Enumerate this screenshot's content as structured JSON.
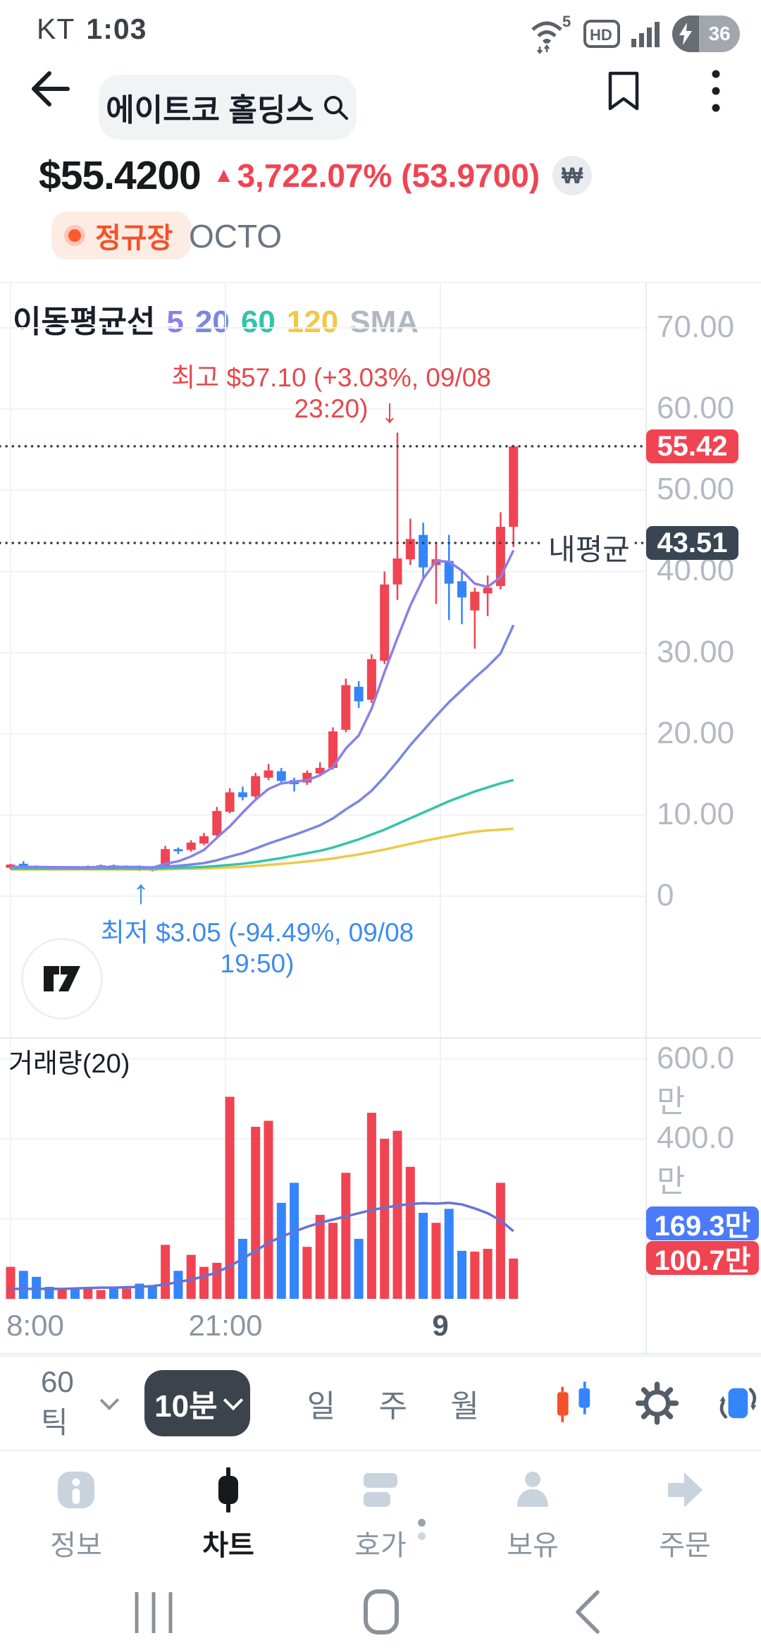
{
  "status_bar": {
    "carrier": "KT",
    "time": "1:03",
    "battery_pct": "36",
    "hd_label": "HD",
    "wifi_gen": "5"
  },
  "header": {
    "stock_name": "에이트코 홀딩스"
  },
  "price_row": {
    "price": "$55.4200",
    "arrow": "▲",
    "change": "3,722.07% (53.9700)",
    "currency_toggle": "₩"
  },
  "market_row": {
    "session": "정규장",
    "venue": "OCTO"
  },
  "toolbar": {
    "tick_label": "60틱",
    "interval_label": "10분",
    "day": "일",
    "week": "주",
    "month": "월"
  },
  "bottom_nav": {
    "items": [
      {
        "label": "정보",
        "icon": "info"
      },
      {
        "label": "차트",
        "icon": "candle",
        "active": true
      },
      {
        "label": "호가",
        "icon": "orderbook"
      },
      {
        "label": "보유",
        "icon": "person"
      },
      {
        "label": "주문",
        "icon": "arrow-right"
      }
    ]
  },
  "colors": {
    "up": "#f04452",
    "down": "#3485fa",
    "avg_badge_bg": "#3a4553",
    "volma_badge_bg": "#4b7bf8",
    "ma5": "#8b80e9",
    "ma20": "#7a86e0",
    "ma60": "#35c3ab",
    "ma120": "#eec94a",
    "vol_ma": "#6673d6",
    "grid": "#f0f2f4",
    "border": "#e7eaed",
    "annotation_high": "#e5484d",
    "annotation_low": "#3d8bf0",
    "session": "#f45128",
    "dotted": "#333d4b",
    "inactive_icon": "#c9d3dd",
    "active_icon": "#17191c"
  },
  "chart_data": {
    "type": "candlestick",
    "legend": {
      "title": "이동평균선",
      "p5": "5",
      "p20": "20",
      "p60": "60",
      "p120": "120",
      "suffix": "SMA"
    },
    "title": "",
    "price_axis": {
      "ticks": [
        {
          "v": 70,
          "label": "70.00"
        },
        {
          "v": 60,
          "label": "60.00"
        },
        {
          "v": 50,
          "label": "50.00"
        },
        {
          "v": 40,
          "label": "40.00"
        },
        {
          "v": 30,
          "label": "30.00"
        },
        {
          "v": 20,
          "label": "20.00"
        },
        {
          "v": 10,
          "label": "10.00"
        },
        {
          "v": 0,
          "label": "0"
        }
      ]
    },
    "x_ticks": [
      {
        "x": 50,
        "label": "8:00",
        "bold": false
      },
      {
        "x": 320,
        "label": "21:00",
        "bold": false
      },
      {
        "x": 625,
        "label": "9",
        "bold": true
      }
    ],
    "current_price": {
      "value": 55.42,
      "label": "55.42"
    },
    "avg_price": {
      "value": 43.51,
      "label": "43.51",
      "name": "내평균"
    },
    "high_annotation": {
      "text": "최고 $57.10 (+3.03%, 09/08 23:20)",
      "arrow": "↓"
    },
    "low_annotation": {
      "text": "최저 $3.05 (-94.49%, 09/08 19:50)",
      "arrow": "↑"
    },
    "volume": {
      "title": "거래량(20)",
      "axis": [
        {
          "v": 600,
          "label": "600.0만"
        },
        {
          "v": 400,
          "label": "400.0만"
        }
      ],
      "grid": [
        600,
        400,
        200
      ],
      "ma_badge": "169.3만",
      "last_badge": "100.7만"
    },
    "candles": [
      [
        3.5,
        4.0,
        3.3,
        3.9
      ],
      [
        4.0,
        4.3,
        3.4,
        3.5
      ],
      [
        3.6,
        3.8,
        3.3,
        3.5
      ],
      [
        3.5,
        3.7,
        3.3,
        3.4
      ],
      [
        3.4,
        3.7,
        3.3,
        3.6
      ],
      [
        3.6,
        3.7,
        3.3,
        3.4
      ],
      [
        3.4,
        3.8,
        3.3,
        3.7
      ],
      [
        3.6,
        3.9,
        3.5,
        3.8
      ],
      [
        3.8,
        3.9,
        3.4,
        3.5
      ],
      [
        3.5,
        3.8,
        3.4,
        3.7
      ],
      [
        3.7,
        3.8,
        3.1,
        3.3
      ],
      [
        3.4,
        3.5,
        3.05,
        3.2
      ],
      [
        3.3,
        6.2,
        3.2,
        5.8
      ],
      [
        5.8,
        6.0,
        5.2,
        5.6
      ],
      [
        5.7,
        6.9,
        5.5,
        6.6
      ],
      [
        6.5,
        7.8,
        6.3,
        7.4
      ],
      [
        7.5,
        11.0,
        7.4,
        10.5
      ],
      [
        10.4,
        13.3,
        10.2,
        12.8
      ],
      [
        12.8,
        13.5,
        11.8,
        12.2
      ],
      [
        12.3,
        15.2,
        12.1,
        14.8
      ],
      [
        14.6,
        16.3,
        14.3,
        15.5
      ],
      [
        15.4,
        15.8,
        13.8,
        14.2
      ],
      [
        14.3,
        14.6,
        12.9,
        13.8
      ],
      [
        14.0,
        15.5,
        13.7,
        15.2
      ],
      [
        15.1,
        16.5,
        14.9,
        15.8
      ],
      [
        15.8,
        20.8,
        15.6,
        20.3
      ],
      [
        20.5,
        26.8,
        20.2,
        26.0
      ],
      [
        25.8,
        26.5,
        23.2,
        24.0
      ],
      [
        24.2,
        29.8,
        23.8,
        29.2
      ],
      [
        29.0,
        40.0,
        28.6,
        38.4
      ],
      [
        38.4,
        57.1,
        36.5,
        41.6
      ],
      [
        41.5,
        46.5,
        40.8,
        44.0
      ],
      [
        44.5,
        46.0,
        39.0,
        40.5
      ],
      [
        40.8,
        43.5,
        36.0,
        41.5
      ],
      [
        41.3,
        44.5,
        34.0,
        38.5
      ],
      [
        38.8,
        40.0,
        33.5,
        36.8
      ],
      [
        35.2,
        38.0,
        30.5,
        37.5
      ],
      [
        37.3,
        39.5,
        34.5,
        38.0
      ],
      [
        38.2,
        47.3,
        37.8,
        45.5
      ],
      [
        45.5,
        55.6,
        43.0,
        55.4
      ]
    ],
    "ma5": [
      3.6,
      3.6,
      3.6,
      3.55,
      3.56,
      3.5,
      3.54,
      3.58,
      3.6,
      3.62,
      3.6,
      3.5,
      4.0,
      4.3,
      4.9,
      5.7,
      7.2,
      8.6,
      10.3,
      11.9,
      13.2,
      13.9,
      14.1,
      14.3,
      14.9,
      15.9,
      18.2,
      19.8,
      23.1,
      27.6,
      31.8,
      35.8,
      39.1,
      41.3,
      41.2,
      40.1,
      38.5,
      38.1,
      39.3,
      42.6
    ],
    "ma20": [
      3.6,
      3.6,
      3.6,
      3.58,
      3.57,
      3.56,
      3.56,
      3.57,
      3.57,
      3.58,
      3.57,
      3.55,
      3.66,
      3.76,
      3.9,
      4.08,
      4.42,
      4.88,
      5.3,
      5.88,
      6.48,
      7.02,
      7.55,
      8.13,
      8.74,
      9.58,
      10.7,
      11.7,
      13.0,
      14.7,
      16.6,
      18.6,
      20.4,
      22.2,
      23.9,
      25.4,
      26.9,
      28.3,
      29.9,
      33.4
    ],
    "ma60": [
      3.4,
      3.4,
      3.4,
      3.4,
      3.4,
      3.4,
      3.4,
      3.4,
      3.4,
      3.4,
      3.4,
      3.4,
      3.45,
      3.5,
      3.55,
      3.62,
      3.72,
      3.86,
      4.0,
      4.2,
      4.45,
      4.7,
      5.0,
      5.3,
      5.6,
      6.0,
      6.5,
      7.0,
      7.6,
      8.2,
      8.9,
      9.6,
      10.3,
      11.0,
      11.7,
      12.3,
      12.9,
      13.4,
      13.9,
      14.3
    ],
    "ma120": [
      3.3,
      3.3,
      3.3,
      3.3,
      3.3,
      3.3,
      3.3,
      3.3,
      3.3,
      3.3,
      3.3,
      3.3,
      3.32,
      3.35,
      3.38,
      3.42,
      3.47,
      3.55,
      3.63,
      3.73,
      3.85,
      3.98,
      4.12,
      4.28,
      4.45,
      4.65,
      4.9,
      5.15,
      5.45,
      5.75,
      6.1,
      6.45,
      6.8,
      7.1,
      7.4,
      7.7,
      7.95,
      8.1,
      8.2,
      8.3
    ],
    "volumes": [
      80,
      70,
      55,
      30,
      25,
      28,
      25,
      22,
      30,
      26,
      38,
      30,
      135,
      70,
      110,
      80,
      90,
      505,
      150,
      430,
      445,
      240,
      290,
      130,
      210,
      190,
      315,
      150,
      465,
      400,
      420,
      330,
      215,
      190,
      225,
      120,
      118,
      125,
      290,
      100.7
    ],
    "vol_ma": [
      25,
      25,
      25,
      25,
      25,
      26,
      27,
      28,
      28,
      29,
      30,
      32,
      36,
      42,
      48,
      56,
      66,
      82,
      100,
      120,
      140,
      155,
      168,
      180,
      190,
      198,
      206,
      214,
      222,
      228,
      233,
      237,
      239,
      238,
      240,
      236,
      226,
      214,
      196,
      169
    ]
  }
}
